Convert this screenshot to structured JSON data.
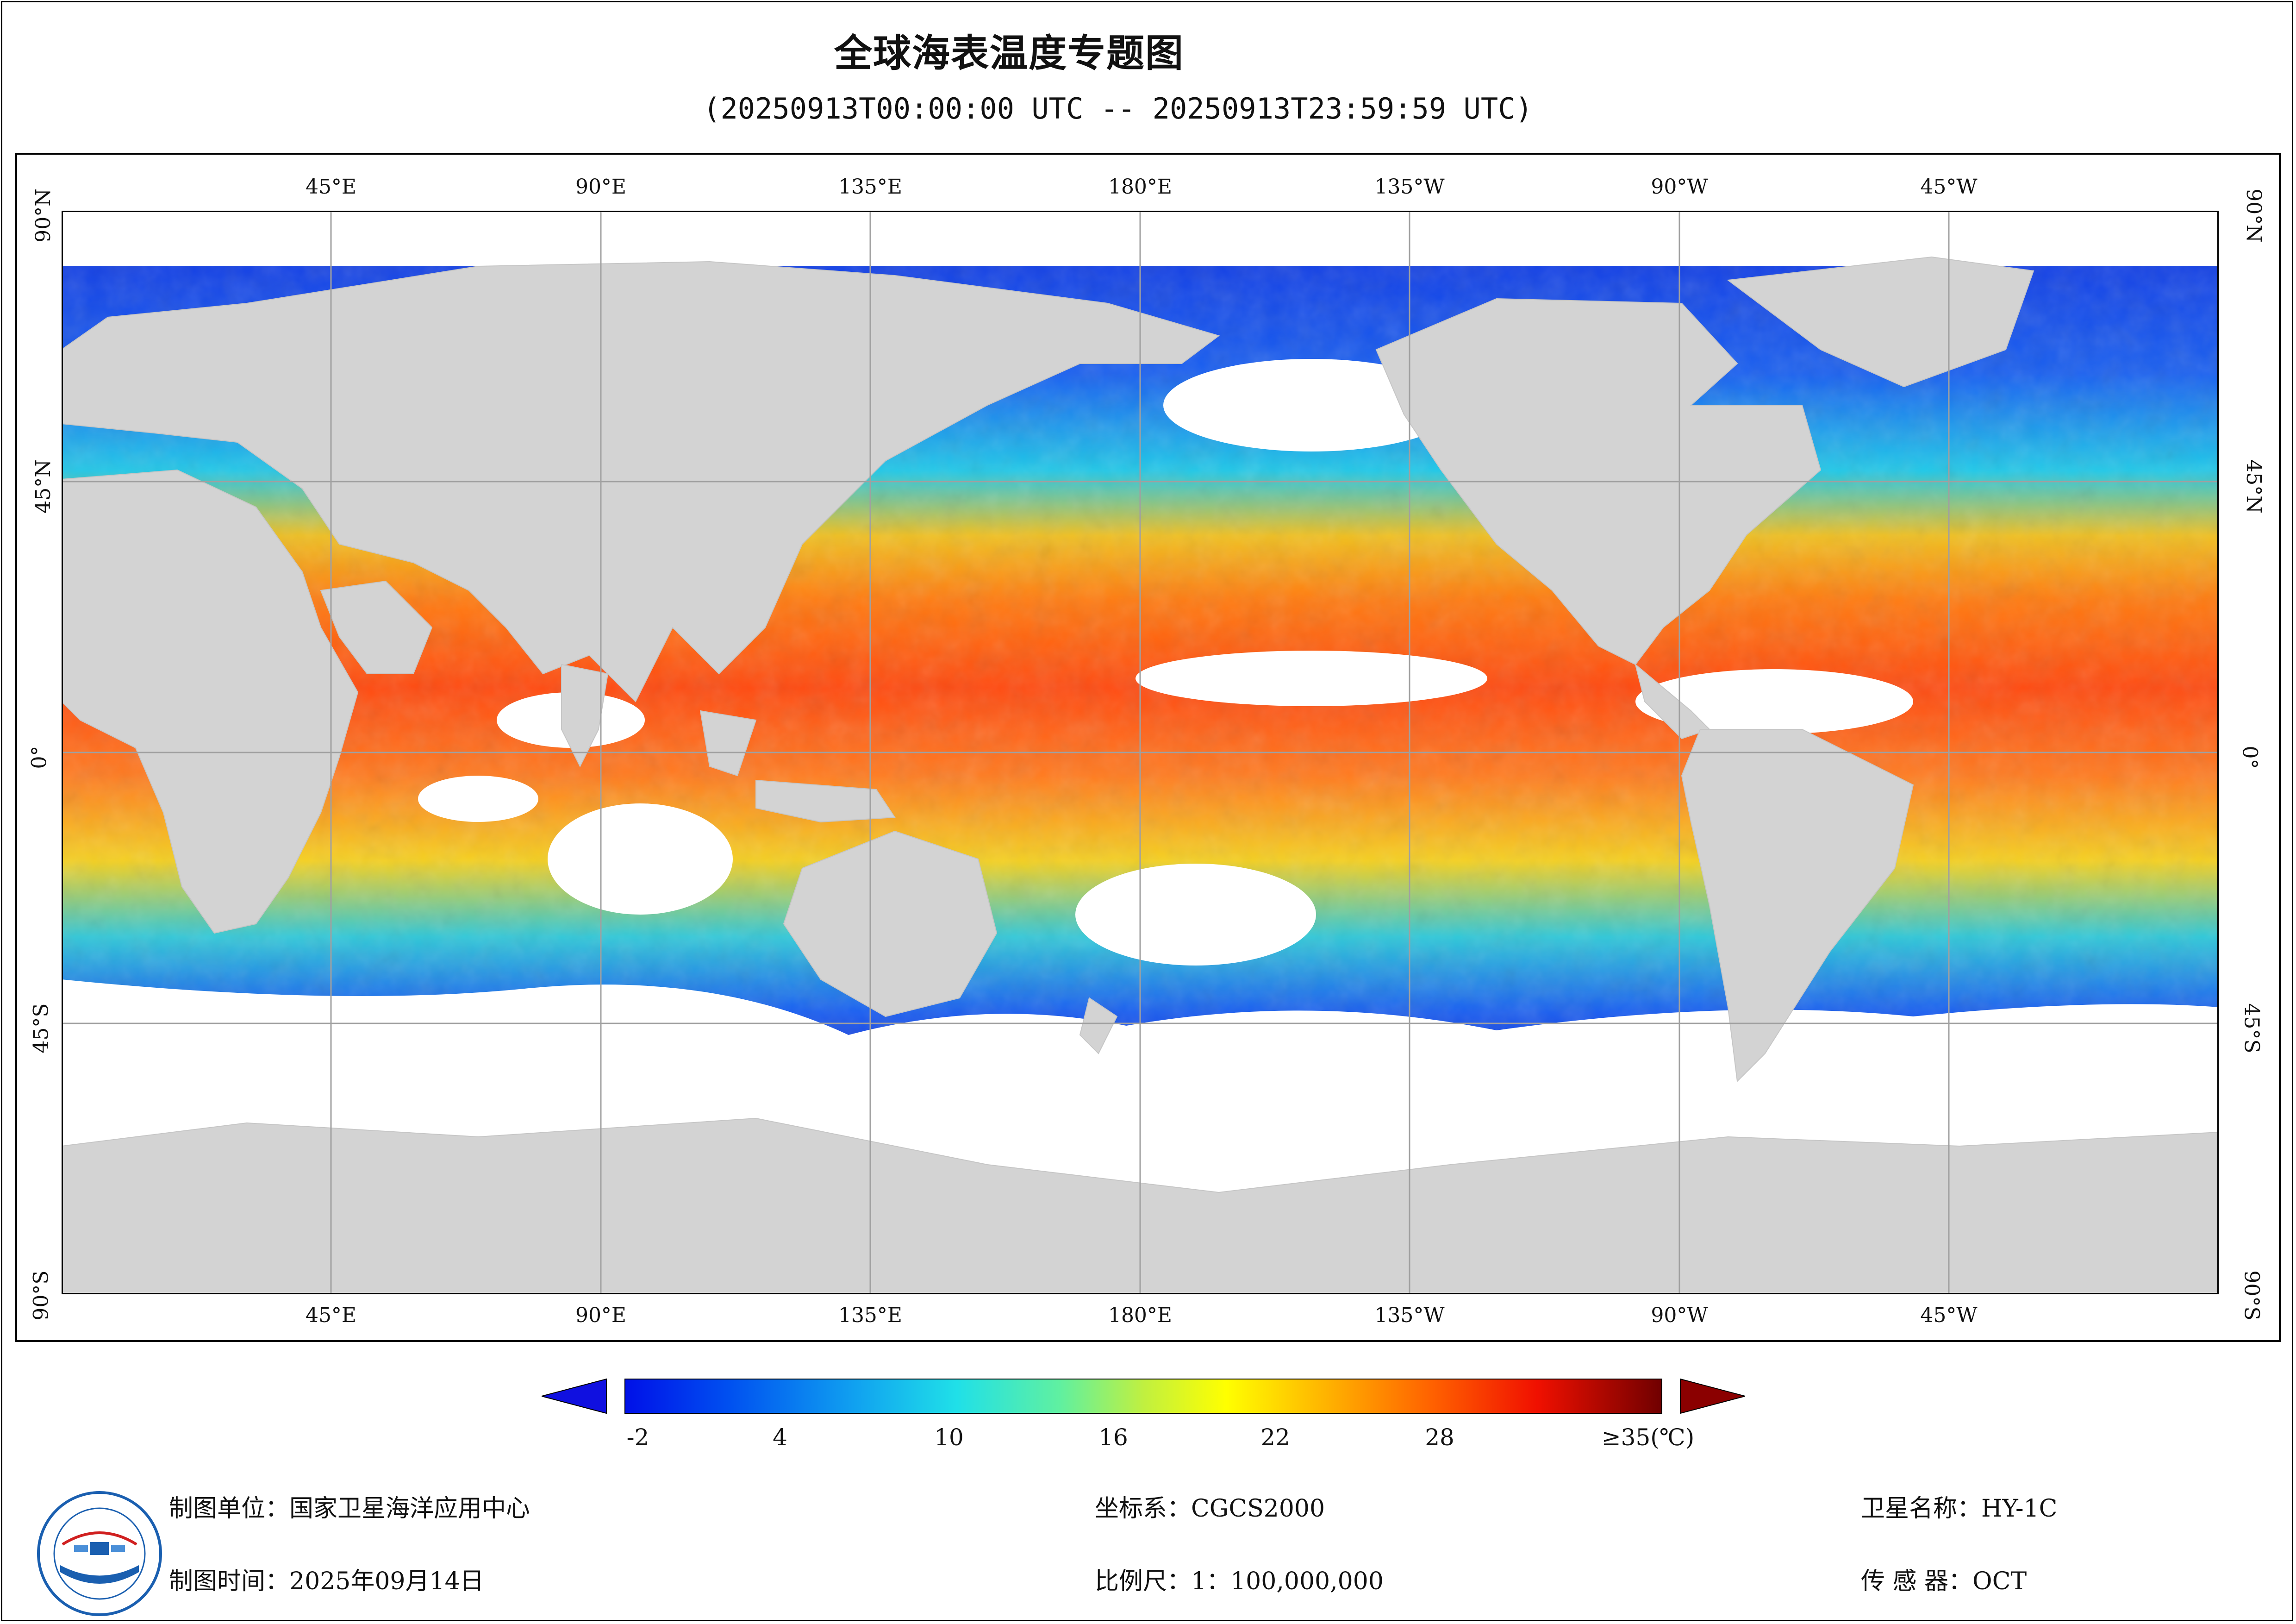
{
  "header": {
    "title": "全球海表温度专题图",
    "subtitle": "(20250913T00:00:00 UTC -- 20250913T23:59:59 UTC)"
  },
  "map": {
    "lon_labels": [
      "45°E",
      "90°E",
      "135°E",
      "180°E",
      "135°W",
      "90°W",
      "45°W"
    ],
    "lat_labels": [
      "90°N",
      "45°N",
      "0°",
      "45°S",
      "90°S"
    ],
    "colors": {
      "land": "#d3d3d3",
      "no_data": "#ffffff",
      "grid": "#a0a0a0"
    }
  },
  "colorbar": {
    "tick_labels": [
      "-2",
      "4",
      "10",
      "16",
      "22",
      "28",
      "≥35(℃)"
    ],
    "range": [
      -2,
      35
    ],
    "under_color": "#1010e0",
    "over_color": "#8b0000"
  },
  "footer": {
    "unit": "制图单位：国家卫星海洋应用中心",
    "time": "制图时间：2025年09月14日",
    "crs": "坐标系：CGCS2000",
    "scale": "比例尺：1：100,000,000",
    "satellite": "卫星名称：HY-1C",
    "sensor": "传 感 器：OCT"
  }
}
